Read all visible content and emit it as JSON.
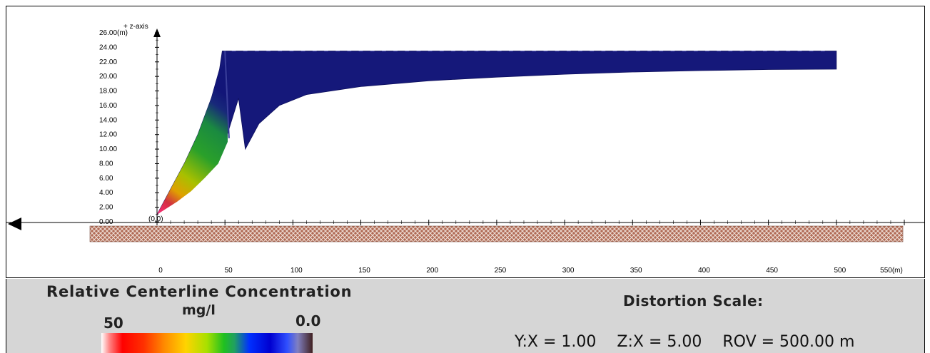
{
  "chart_data": {
    "type": "area",
    "title": "",
    "xlabel": "",
    "ylabel": "+ z-axis",
    "x_ticks": [
      "0",
      "50",
      "100",
      "150",
      "200",
      "250",
      "300",
      "350",
      "400",
      "450",
      "500",
      "550(m)"
    ],
    "y_ticks": [
      "0.00",
      "2.00",
      "4.00",
      "6.00",
      "8.00",
      "10.00",
      "12.00",
      "14.00",
      "16.00",
      "18.00",
      "20.00",
      "22.00",
      "24.00",
      "26.00(m)"
    ],
    "origin_label": "(0,0)",
    "xlim": [
      0,
      550
    ],
    "ylim": [
      0,
      26
    ],
    "series": [
      {
        "upper_x": [
          0,
          10,
          20,
          30,
          40,
          46,
          48,
          55,
          500
        ],
        "upper_y": [
          1.0,
          4.5,
          8.0,
          12.0,
          17.0,
          21.0,
          23.5,
          23.5,
          23.5
        ],
        "lower_x": [
          0,
          10,
          20,
          30,
          40,
          50,
          60,
          65,
          75,
          90,
          110,
          150,
          200,
          250,
          300,
          350,
          400,
          450,
          500
        ],
        "lower_y": [
          1.0,
          2.5,
          4.0,
          6.0,
          8.5,
          11.0,
          17.0,
          10.0,
          13.5,
          16.0,
          17.5,
          18.6,
          19.4,
          19.9,
          20.3,
          20.6,
          20.8,
          20.95,
          21.0
        ]
      }
    ],
    "colors": [
      "#ffffff",
      "#ff0000",
      "#ff8c00",
      "#ffd400",
      "#20c020",
      "#0000d0",
      "#11117a",
      "#402020"
    ],
    "grid": false
  },
  "legend": {
    "title": "Relative Centerline Concentration",
    "unit": "mg/l",
    "max_label": "50",
    "min_label": "0.0"
  },
  "distortion": {
    "title": "Distortion Scale:",
    "yx": "Y:X = 1.00",
    "zx": "Z:X = 5.00",
    "rov": "ROV = 500.00 m"
  }
}
